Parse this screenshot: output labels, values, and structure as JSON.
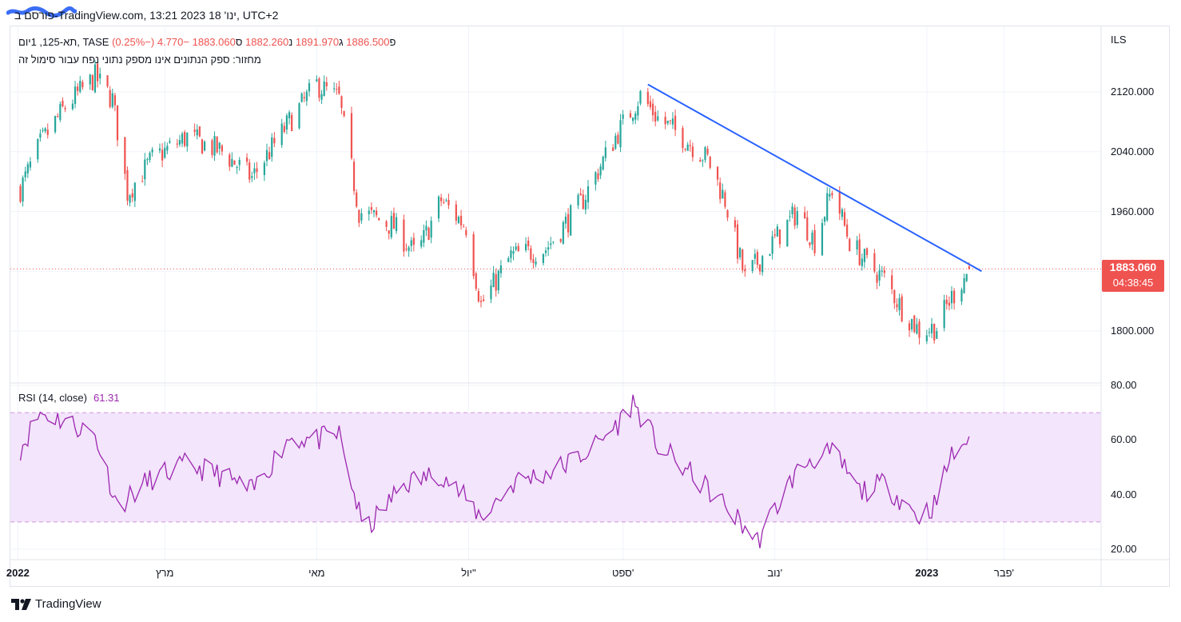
{
  "header": {
    "text": "פורסם ב-TradingView.com, 13:21 2023 ינו' 18, UTC+2"
  },
  "legend": {
    "symbol": "תא-125, 1יום, TASE",
    "open_label": "פ",
    "open": "1886.500",
    "high_label": "ג",
    "high": "1891.970",
    "low_label": "נ",
    "low": "1882.260",
    "close_label": "ס",
    "close": "1883.060",
    "change": "−4.770 (−0.25%)",
    "volume_note": "מחזור: ספק הנתונים אינו מספק נתוני נפח עבור סימול זה"
  },
  "price_axis": {
    "currency": "ILS",
    "ticks": [
      "2120.000",
      "2040.000",
      "1960.000",
      "1800.000"
    ],
    "last_price": "1883.060",
    "countdown": "04:38:45"
  },
  "rsi": {
    "label": "RSI (14, close)",
    "value": "61.31",
    "ticks": [
      "80.00",
      "60.00",
      "40.00",
      "20.00"
    ],
    "upper_band": 70,
    "lower_band": 30
  },
  "time_axis": {
    "ticks": [
      {
        "label": "2022",
        "bold": true
      },
      {
        "label": "מרץ",
        "bold": false
      },
      {
        "label": "מאי",
        "bold": false
      },
      {
        "label": "יול\"",
        "bold": false
      },
      {
        "label": "ספט'",
        "bold": false
      },
      {
        "label": "נוב'",
        "bold": false
      },
      {
        "label": "2023",
        "bold": true
      },
      {
        "label": "פבר'",
        "bold": false
      }
    ]
  },
  "footer": {
    "brand": "TradingView"
  },
  "colors": {
    "up": "#26a69a",
    "down": "#ef5350",
    "trendline": "#2962ff",
    "rsi": "#9c27b0",
    "rsi_band": "#f3e5fc"
  },
  "chart_data": {
    "type": "candlestick",
    "series_name": "תא-125",
    "ylim": [
      1745,
      2185
    ],
    "x": [
      "2022-01",
      "2022-03",
      "2022-05",
      "2022-07",
      "2022-09",
      "2022-11",
      "2023-01",
      "2023-02"
    ],
    "close_path": [
      {
        "date": "2022-01-02",
        "close": 1990
      },
      {
        "date": "2022-01-10",
        "close": 2050
      },
      {
        "date": "2022-01-20",
        "close": 2100
      },
      {
        "date": "2022-02-01",
        "close": 2140
      },
      {
        "date": "2022-02-08",
        "close": 2110
      },
      {
        "date": "2022-02-14",
        "close": 1985
      },
      {
        "date": "2022-02-24",
        "close": 2030
      },
      {
        "date": "2022-03-10",
        "close": 2060
      },
      {
        "date": "2022-03-24",
        "close": 2040
      },
      {
        "date": "2022-04-05",
        "close": 2005
      },
      {
        "date": "2022-04-20",
        "close": 2080
      },
      {
        "date": "2022-05-01",
        "close": 2130
      },
      {
        "date": "2022-05-10",
        "close": 2110
      },
      {
        "date": "2022-05-18",
        "close": 1960
      },
      {
        "date": "2022-06-01",
        "close": 1940
      },
      {
        "date": "2022-06-10",
        "close": 1900
      },
      {
        "date": "2022-06-20",
        "close": 1975
      },
      {
        "date": "2022-06-30",
        "close": 1940
      },
      {
        "date": "2022-07-06",
        "close": 1835
      },
      {
        "date": "2022-07-18",
        "close": 1900
      },
      {
        "date": "2022-08-01",
        "close": 1910
      },
      {
        "date": "2022-08-15",
        "close": 1970
      },
      {
        "date": "2022-08-29",
        "close": 2060
      },
      {
        "date": "2022-09-08",
        "close": 2115
      },
      {
        "date": "2022-09-15",
        "close": 2085
      },
      {
        "date": "2022-09-25",
        "close": 2060
      },
      {
        "date": "2022-10-05",
        "close": 2030
      },
      {
        "date": "2022-10-12",
        "close": 1975
      },
      {
        "date": "2022-10-20",
        "close": 1870
      },
      {
        "date": "2022-10-28",
        "close": 1905
      },
      {
        "date": "2022-11-10",
        "close": 1960
      },
      {
        "date": "2022-11-17",
        "close": 1920
      },
      {
        "date": "2022-11-24",
        "close": 1990
      },
      {
        "date": "2022-12-01",
        "close": 1920
      },
      {
        "date": "2022-12-08",
        "close": 1890
      },
      {
        "date": "2022-12-15",
        "close": 1870
      },
      {
        "date": "2022-12-22",
        "close": 1830
      },
      {
        "date": "2022-12-29",
        "close": 1800
      },
      {
        "date": "2023-01-05",
        "close": 1805
      },
      {
        "date": "2023-01-10",
        "close": 1840
      },
      {
        "date": "2023-01-18",
        "close": 1883.06
      }
    ],
    "trendline": [
      {
        "date": "2022-09-11",
        "price": 2130
      },
      {
        "date": "2023-01-23",
        "price": 1880
      }
    ],
    "rsi_path": [
      {
        "date": "2022-01-02",
        "value": 57
      },
      {
        "date": "2022-01-10",
        "value": 70
      },
      {
        "date": "2022-01-20",
        "value": 67
      },
      {
        "date": "2022-02-01",
        "value": 62
      },
      {
        "date": "2022-02-10",
        "value": 36
      },
      {
        "date": "2022-02-24",
        "value": 46
      },
      {
        "date": "2022-03-10",
        "value": 51
      },
      {
        "date": "2022-03-24",
        "value": 47
      },
      {
        "date": "2022-04-05",
        "value": 41
      },
      {
        "date": "2022-04-20",
        "value": 61
      },
      {
        "date": "2022-05-01",
        "value": 60
      },
      {
        "date": "2022-05-10",
        "value": 62
      },
      {
        "date": "2022-05-20",
        "value": 26
      },
      {
        "date": "2022-06-05",
        "value": 44
      },
      {
        "date": "2022-06-20",
        "value": 48
      },
      {
        "date": "2022-07-06",
        "value": 32
      },
      {
        "date": "2022-07-20",
        "value": 45
      },
      {
        "date": "2022-08-05",
        "value": 49
      },
      {
        "date": "2022-08-20",
        "value": 57
      },
      {
        "date": "2022-08-30",
        "value": 66
      },
      {
        "date": "2022-09-05",
        "value": 74
      },
      {
        "date": "2022-09-15",
        "value": 58
      },
      {
        "date": "2022-09-25",
        "value": 50
      },
      {
        "date": "2022-10-10",
        "value": 38
      },
      {
        "date": "2022-10-25",
        "value": 23
      },
      {
        "date": "2022-11-08",
        "value": 46
      },
      {
        "date": "2022-11-15",
        "value": 53
      },
      {
        "date": "2022-11-25",
        "value": 55
      },
      {
        "date": "2022-12-05",
        "value": 41
      },
      {
        "date": "2022-12-15",
        "value": 44
      },
      {
        "date": "2022-12-29",
        "value": 32
      },
      {
        "date": "2023-01-05",
        "value": 37
      },
      {
        "date": "2023-01-10",
        "value": 53
      },
      {
        "date": "2023-01-18",
        "value": 61.31
      }
    ]
  }
}
